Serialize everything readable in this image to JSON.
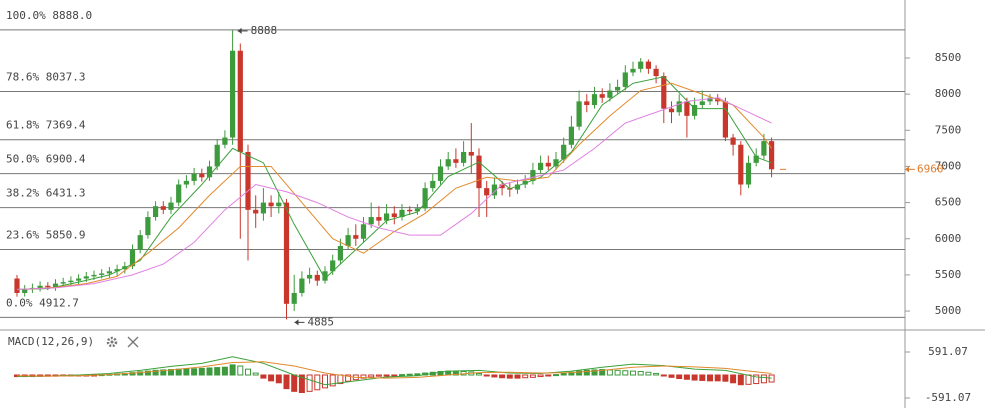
{
  "chart_data": {
    "type": "candlestick",
    "colors": {
      "up": "#3d9a3d",
      "down": "#c9372c"
    },
    "ylim": [
      4738,
      9302
    ],
    "yticks": [
      5000,
      5500,
      6000,
      6500,
      7000,
      7500,
      8000,
      8500
    ],
    "open": [
      5450,
      5250,
      5300,
      5320,
      5350,
      5330,
      5380,
      5400,
      5420,
      5450,
      5480,
      5500,
      5520,
      5550,
      5580,
      5620,
      5850,
      6050,
      6300,
      6450,
      6400,
      6500,
      6750,
      6800,
      6900,
      6850,
      7000,
      7300,
      7400,
      8600,
      7200,
      6400,
      6350,
      6500,
      6450,
      6500,
      5100,
      5250,
      5450,
      5500,
      5420,
      5550,
      5700,
      5900,
      6050,
      6000,
      6200,
      6300,
      6250,
      6350,
      6300,
      6400,
      6380,
      6420,
      6700,
      6800,
      7000,
      7100,
      7050,
      7200,
      7150,
      6700,
      6600,
      6750,
      6700,
      6680,
      6750,
      6800,
      6950,
      7050,
      7000,
      7100,
      7300,
      7550,
      7900,
      7850,
      8000,
      7950,
      8050,
      8100,
      8300,
      8350,
      8450,
      8350,
      8250,
      7800,
      7750,
      7900,
      7700,
      7850,
      7900,
      7950,
      7900,
      7400,
      7300,
      6750,
      7050,
      7150,
      7350
    ],
    "high": [
      5500,
      5360,
      5380,
      5410,
      5400,
      5440,
      5460,
      5480,
      5510,
      5540,
      5560,
      5580,
      5610,
      5640,
      5680,
      5920,
      6120,
      6380,
      6520,
      6520,
      6580,
      6820,
      6880,
      6980,
      6970,
      7080,
      7380,
      7500,
      8888,
      8700,
      7300,
      6600,
      6700,
      6600,
      6650,
      6550,
      5500,
      5550,
      5600,
      5560,
      5620,
      5780,
      6000,
      6150,
      6200,
      6300,
      6500,
      6450,
      6480,
      6450,
      6480,
      6450,
      6480,
      6780,
      6900,
      7100,
      7200,
      7250,
      7350,
      7600,
      7250,
      6800,
      6850,
      6800,
      6780,
      6820,
      6880,
      7050,
      7150,
      7150,
      7200,
      7400,
      7700,
      8050,
      8000,
      8100,
      8080,
      8150,
      8200,
      8400,
      8450,
      8500,
      8480,
      8400,
      8300,
      7900,
      8000,
      7950,
      7950,
      8050,
      8000,
      8000,
      7950,
      7450,
      7350,
      7150,
      7250,
      7450,
      7400
    ],
    "low": [
      5200,
      5200,
      5250,
      5270,
      5290,
      5280,
      5330,
      5350,
      5370,
      5400,
      5430,
      5450,
      5460,
      5490,
      5520,
      5580,
      5800,
      6000,
      6250,
      6340,
      6340,
      6450,
      6700,
      6740,
      6790,
      6800,
      6950,
      7250,
      7300,
      6000,
      5700,
      6150,
      6250,
      6300,
      6350,
      4885,
      5000,
      5200,
      5380,
      5350,
      5380,
      5500,
      5650,
      5850,
      5900,
      5950,
      6150,
      6180,
      6200,
      6200,
      6250,
      6330,
      6330,
      6380,
      6650,
      6750,
      6950,
      6980,
      7000,
      6900,
      6300,
      6300,
      6550,
      6600,
      6580,
      6620,
      6700,
      6750,
      6900,
      6950,
      6950,
      7050,
      7250,
      7500,
      7750,
      7800,
      7880,
      7900,
      8000,
      8050,
      8250,
      8300,
      8280,
      8150,
      7600,
      7600,
      7700,
      7400,
      7650,
      7800,
      7850,
      7850,
      7350,
      7150,
      6600,
      6700,
      7000,
      7100,
      6850
    ],
    "close": [
      5250,
      5300,
      5320,
      5350,
      5330,
      5380,
      5400,
      5420,
      5450,
      5480,
      5500,
      5520,
      5550,
      5580,
      5620,
      5850,
      6050,
      6300,
      6450,
      6400,
      6500,
      6750,
      6800,
      6900,
      6850,
      7000,
      7300,
      7400,
      8600,
      7200,
      6400,
      6350,
      6500,
      6450,
      6500,
      5100,
      5250,
      5450,
      5500,
      5420,
      5550,
      5700,
      5900,
      6050,
      6000,
      6200,
      6300,
      6250,
      6350,
      6300,
      6400,
      6380,
      6420,
      6700,
      6800,
      7000,
      7100,
      7050,
      7200,
      7150,
      6700,
      6600,
      6750,
      6700,
      6680,
      6750,
      6800,
      6950,
      7050,
      7000,
      7100,
      7300,
      7550,
      7900,
      7850,
      8000,
      7950,
      8050,
      8100,
      8300,
      8350,
      8450,
      8350,
      8250,
      7800,
      7750,
      7900,
      7700,
      7850,
      7900,
      7950,
      7900,
      7400,
      7300,
      6750,
      7050,
      7150,
      7350,
      6960
    ],
    "moving_averages": [
      {
        "color": "#3aa13a",
        "x": [
          0,
          4,
          8,
          12,
          16,
          20,
          24,
          28,
          32,
          36,
          40,
          44,
          48,
          52,
          56,
          60,
          64,
          68,
          72,
          76,
          80,
          84,
          88,
          92,
          96,
          98
        ],
        "values": [
          5300,
          5310,
          5400,
          5500,
          5700,
          6300,
          6750,
          7250,
          7050,
          6200,
          5450,
          5850,
          6250,
          6370,
          6860,
          7060,
          6690,
          6850,
          7200,
          7850,
          8150,
          8240,
          7800,
          7800,
          7130,
          7050
        ]
      },
      {
        "color": "#e08a2c",
        "x": [
          1,
          5,
          9,
          13,
          17,
          21,
          25,
          29,
          33,
          37,
          41,
          45,
          49,
          53,
          57,
          61,
          65,
          69,
          73,
          77,
          81,
          85,
          89,
          93,
          97,
          98
        ],
        "values": [
          5300,
          5330,
          5380,
          5480,
          5800,
          6150,
          6600,
          7000,
          7000,
          6500,
          6000,
          5800,
          6100,
          6350,
          6700,
          6850,
          6800,
          6850,
          7300,
          7700,
          8050,
          8150,
          8000,
          7850,
          7400,
          7250
        ]
      },
      {
        "color": "#e080e0",
        "x": [
          0,
          5,
          10,
          15,
          19,
          23,
          27,
          31,
          35,
          39,
          43,
          47,
          51,
          55,
          59,
          63,
          67,
          71,
          75,
          79,
          83,
          87,
          91,
          95,
          98
        ],
        "values": [
          5300,
          5320,
          5380,
          5500,
          5650,
          5950,
          6400,
          6750,
          6650,
          6500,
          6300,
          6150,
          6050,
          6050,
          6350,
          6750,
          6850,
          6950,
          7250,
          7600,
          7750,
          7900,
          7950,
          7750,
          7600
        ]
      }
    ],
    "fib_levels": [
      {
        "value": 8888.0,
        "label": "100.0% 8888.0"
      },
      {
        "value": 8037.3,
        "label": "78.6% 8037.3"
      },
      {
        "value": 7369.4,
        "label": "61.8% 7369.4"
      },
      {
        "value": 6900.4,
        "label": "50.0% 6900.4"
      },
      {
        "value": 6431.3,
        "label": "38.2% 6431.3"
      },
      {
        "value": 5850.9,
        "label": "23.6% 5850.9"
      },
      {
        "value": 4912.7,
        "label": "0.0% 4912.7"
      }
    ],
    "high_label": 8888,
    "low_label": 4885,
    "last_price": 6960,
    "last_price_color": "#e07b2a",
    "macd": {
      "label": "MACD(12,26,9)",
      "y2lim": [
        -848,
        1079
      ],
      "y2ticks": [
        591.07,
        -591.07
      ],
      "histogram": [
        -40,
        -40,
        -40,
        -35,
        -30,
        -30,
        -25,
        -20,
        -20,
        -15,
        -10,
        10,
        20,
        30,
        40,
        60,
        80,
        100,
        120,
        130,
        140,
        150,
        160,
        160,
        170,
        180,
        190,
        200,
        260,
        230,
        150,
        50,
        -80,
        -150,
        -200,
        -350,
        -420,
        -450,
        -420,
        -380,
        -330,
        -280,
        -220,
        -160,
        -120,
        -80,
        -50,
        -30,
        -20,
        -10,
        10,
        20,
        30,
        50,
        70,
        90,
        100,
        100,
        90,
        80,
        40,
        -20,
        -50,
        -70,
        -80,
        -80,
        -70,
        -60,
        -40,
        -20,
        10,
        40,
        70,
        100,
        120,
        130,
        140,
        130,
        120,
        110,
        100,
        90,
        70,
        40,
        -20,
        -60,
        -90,
        -110,
        -130,
        -140,
        -150,
        -150,
        -160,
        -200,
        -250,
        -240,
        -220,
        -200,
        -180
      ],
      "lines": [
        {
          "color": "#3aa13a",
          "x": [
            0,
            4,
            8,
            12,
            16,
            20,
            24,
            28,
            32,
            36,
            40,
            44,
            48,
            52,
            56,
            60,
            64,
            68,
            72,
            76,
            80,
            84,
            88,
            92,
            96,
            98
          ],
          "values": [
            -40,
            -30,
            0,
            40,
            120,
            220,
            300,
            470,
            300,
            0,
            -250,
            -150,
            -50,
            -20,
            100,
            120,
            50,
            40,
            100,
            200,
            280,
            240,
            150,
            120,
            -50,
            -80
          ]
        },
        {
          "color": "#e08a2c",
          "x": [
            0,
            4,
            8,
            12,
            16,
            20,
            24,
            28,
            32,
            36,
            40,
            44,
            48,
            52,
            56,
            60,
            64,
            68,
            72,
            76,
            80,
            84,
            88,
            92,
            96,
            98
          ],
          "values": [
            -20,
            -30,
            -20,
            10,
            60,
            130,
            210,
            320,
            340,
            230,
            50,
            -60,
            -80,
            -60,
            0,
            60,
            70,
            50,
            60,
            120,
            200,
            230,
            210,
            170,
            80,
            40
          ]
        }
      ]
    }
  }
}
